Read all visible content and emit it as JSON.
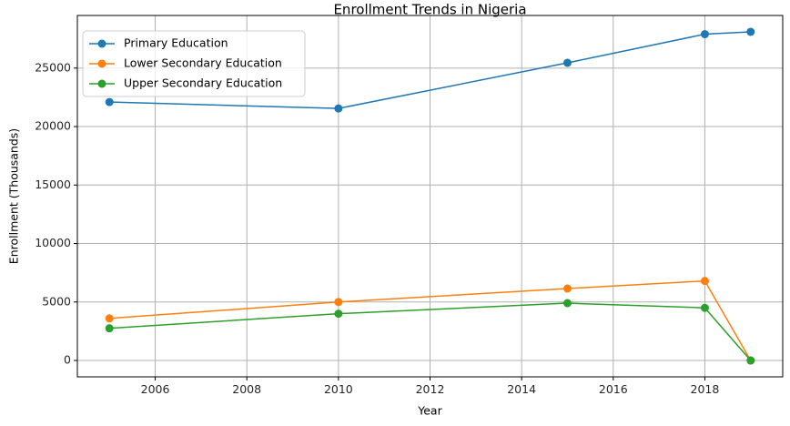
{
  "chart_data": {
    "type": "line",
    "title": "Enrollment Trends in Nigeria",
    "xlabel": "Year",
    "ylabel": "Enrollment (Thousands)",
    "xlim": [
      2004.3,
      2019.7
    ],
    "ylim": [
      -1400,
      29500
    ],
    "xticks": [
      2006,
      2008,
      2010,
      2012,
      2014,
      2016,
      2018
    ],
    "yticks": [
      0,
      5000,
      10000,
      15000,
      20000,
      25000
    ],
    "grid": true,
    "legend_position": "top-left",
    "series": [
      {
        "name": "Primary Education",
        "color": "#1f77b4",
        "x": [
          2005,
          2010,
          2015,
          2018,
          2019
        ],
        "values": [
          22100,
          21550,
          25450,
          27900,
          28100
        ]
      },
      {
        "name": "Lower Secondary Education",
        "color": "#ff7f0e",
        "x": [
          2005,
          2010,
          2015,
          2018,
          2019
        ],
        "values": [
          3600,
          5000,
          6150,
          6800,
          0
        ]
      },
      {
        "name": "Upper Secondary Education",
        "color": "#2ca02c",
        "x": [
          2005,
          2010,
          2015,
          2018,
          2019
        ],
        "values": [
          2750,
          4000,
          4900,
          4500,
          0
        ]
      }
    ]
  }
}
